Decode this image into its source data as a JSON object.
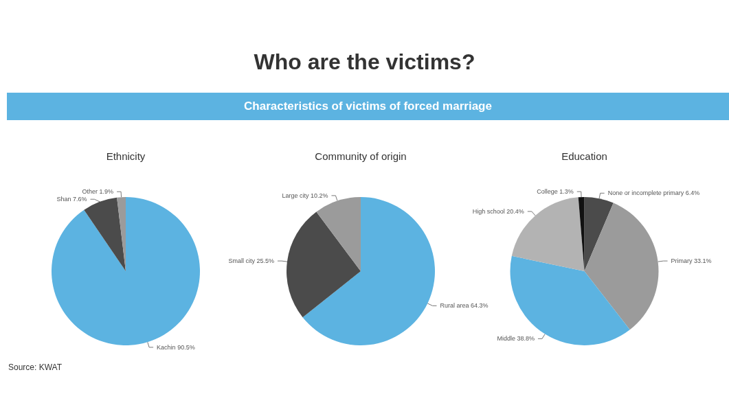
{
  "chart_data": [
    {
      "type": "other",
      "title": "Who are the victims?",
      "subtitle": "Characteristics of victims of forced marriage"
    },
    {
      "type": "pie",
      "title": "Ethnicity",
      "categories": [
        "Kachin",
        "Shan",
        "Other"
      ],
      "values": [
        90.5,
        7.6,
        1.9
      ],
      "value_labels": [
        "90.5%",
        "7.6%",
        "1.9%"
      ],
      "colors": [
        "#5cb3e1",
        "#4b4b4b",
        "#9b9b9b"
      ],
      "legend": false,
      "annotations": [
        "Source: KWAT"
      ]
    },
    {
      "type": "pie",
      "title": "Community of origin",
      "categories": [
        "Rural area",
        "Small city",
        "Large city"
      ],
      "values": [
        64.3,
        25.5,
        10.2
      ],
      "value_labels": [
        "64.3%",
        "25.5%",
        "10.2%"
      ],
      "colors": [
        "#5cb3e1",
        "#4b4b4b",
        "#9b9b9b"
      ],
      "legend": false
    },
    {
      "type": "pie",
      "title": "Education",
      "categories": [
        "None or incomplete primary",
        "Primary",
        "Middle",
        "High school",
        "College"
      ],
      "values": [
        6.4,
        33.1,
        38.8,
        20.4,
        1.3
      ],
      "value_labels": [
        "6.4%",
        "33.1%",
        "38.8%",
        "20.4%",
        "1.3%"
      ],
      "colors": [
        "#4b4b4b",
        "#9b9b9b",
        "#5cb3e1",
        "#b3b3b3",
        "#111111"
      ],
      "legend": false
    }
  ]
}
